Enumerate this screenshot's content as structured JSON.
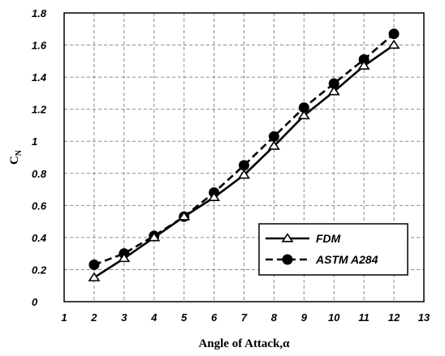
{
  "chart_data": {
    "type": "line",
    "xlabel": "Angle of Attack,α",
    "ylabel": "C",
    "ylabel_sub": "N",
    "xlim": [
      1,
      13
    ],
    "ylim": [
      0,
      1.8
    ],
    "x_ticks": [
      1,
      2,
      3,
      4,
      5,
      6,
      7,
      8,
      9,
      10,
      11,
      12,
      13
    ],
    "y_ticks": [
      "0",
      "0.2",
      "0.4",
      "0.6",
      "0.8",
      "1",
      "1.2",
      "1.4",
      "1.6",
      "1.8"
    ],
    "grid": true,
    "legend_position": "bottom-right",
    "x": [
      2,
      3,
      4,
      5,
      6,
      7,
      8,
      9,
      10,
      11,
      12
    ],
    "series": [
      {
        "name": "FDM",
        "values": [
          0.15,
          0.27,
          0.4,
          0.53,
          0.65,
          0.79,
          0.97,
          1.16,
          1.31,
          1.47,
          1.6
        ],
        "marker": "open-triangle",
        "line": "solid",
        "color": "#000000"
      },
      {
        "name": "ASTM A284",
        "values": [
          0.23,
          0.3,
          0.41,
          0.53,
          0.68,
          0.85,
          1.03,
          1.21,
          1.36,
          1.51,
          1.67
        ],
        "marker": "filled-circle",
        "line": "dashed",
        "color": "#000000"
      }
    ]
  }
}
